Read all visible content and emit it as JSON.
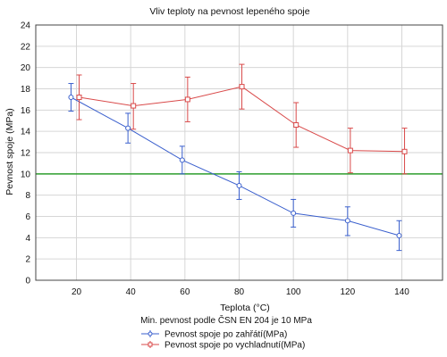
{
  "chart_data": {
    "type": "line",
    "title": "Vliv teploty na pevnost lepeného spoje",
    "xlabel": "Teplota (°C)",
    "ylabel": "Pevnost spoje (MPa)",
    "xlim": [
      5,
      155
    ],
    "ylim": [
      0,
      24
    ],
    "x_ticks": [
      20,
      40,
      60,
      80,
      100,
      120,
      140
    ],
    "y_ticks": [
      0,
      2,
      4,
      6,
      8,
      10,
      12,
      14,
      16,
      18,
      20,
      22,
      24
    ],
    "grid": true,
    "legend_position": "bottom",
    "reference_line": {
      "value": 10,
      "label": "Min. pevnost podle ČSN EN 204 je 10 MPa",
      "color": "#2e9e2e"
    },
    "series": [
      {
        "name": "Pevnost spoje po zahřátí(MPa)",
        "color": "#3a5fcd",
        "marker": "circle",
        "x": [
          18,
          39,
          59,
          80,
          100,
          120,
          139
        ],
        "y": [
          17.2,
          14.3,
          11.3,
          8.9,
          6.3,
          5.6,
          4.2
        ],
        "err_low": [
          15.9,
          12.9,
          10.0,
          7.6,
          5.0,
          4.2,
          2.8
        ],
        "err_high": [
          18.5,
          15.7,
          12.6,
          10.2,
          7.6,
          6.9,
          5.6
        ]
      },
      {
        "name": "Pevnost spoje po vychladnutí(MPa)",
        "color": "#d94a4a",
        "marker": "square",
        "x": [
          21,
          41,
          61,
          81,
          101,
          121,
          141
        ],
        "y": [
          17.2,
          16.4,
          17.0,
          18.2,
          14.6,
          12.2,
          12.1
        ],
        "err_low": [
          15.1,
          14.2,
          14.9,
          16.1,
          12.5,
          10.1,
          10.0
        ],
        "err_high": [
          19.3,
          18.5,
          19.1,
          20.3,
          16.7,
          14.3,
          14.3
        ]
      }
    ]
  }
}
